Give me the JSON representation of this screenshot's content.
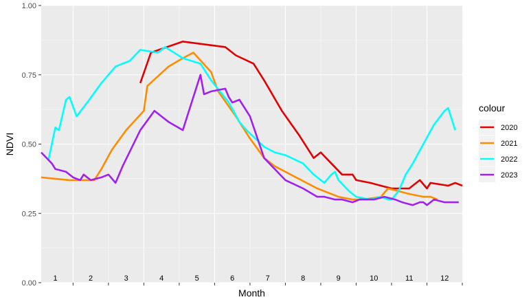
{
  "chart_data": {
    "type": "line",
    "xlabel": "Month",
    "ylabel": "NDVI",
    "xlim": [
      0.6,
      12.5
    ],
    "ylim": [
      0,
      1
    ],
    "grid": true,
    "month_labels": [
      "1",
      "2",
      "3",
      "4",
      "5",
      "6",
      "7",
      "8",
      "9",
      "10",
      "11",
      "12"
    ],
    "y_ticks": [
      0,
      0.25,
      0.5,
      0.75,
      1
    ],
    "y_tick_labels": [
      "0.00",
      "0.25",
      "0.50",
      "0.75",
      "1.00"
    ],
    "legend": {
      "title": "colour",
      "placement": "right"
    },
    "series": [
      {
        "name": "2020",
        "color": "#e00000",
        "points": [
          [
            3.4,
            0.72
          ],
          [
            3.7,
            0.83
          ],
          [
            4.6,
            0.87
          ],
          [
            5.2,
            0.86
          ],
          [
            5.8,
            0.85
          ],
          [
            6.1,
            0.82
          ],
          [
            6.6,
            0.79
          ],
          [
            6.9,
            0.73
          ],
          [
            7.4,
            0.62
          ],
          [
            7.9,
            0.53
          ],
          [
            8.3,
            0.45
          ],
          [
            8.5,
            0.47
          ],
          [
            8.8,
            0.43
          ],
          [
            9.1,
            0.39
          ],
          [
            9.4,
            0.39
          ],
          [
            9.5,
            0.37
          ],
          [
            9.9,
            0.36
          ],
          [
            10.2,
            0.35
          ],
          [
            10.5,
            0.34
          ],
          [
            11.0,
            0.34
          ],
          [
            11.2,
            0.36
          ],
          [
            11.3,
            0.37
          ],
          [
            11.5,
            0.34
          ],
          [
            11.6,
            0.36
          ],
          [
            12.1,
            0.35
          ],
          [
            12.3,
            0.36
          ],
          [
            12.5,
            0.35
          ]
        ]
      },
      {
        "name": "2021",
        "color": "#ff8c00",
        "points": [
          [
            0.6,
            0.38
          ],
          [
            1.4,
            0.37
          ],
          [
            2.1,
            0.37
          ],
          [
            2.3,
            0.41
          ],
          [
            2.6,
            0.48
          ],
          [
            3.0,
            0.55
          ],
          [
            3.5,
            0.62
          ],
          [
            3.6,
            0.71
          ],
          [
            4.2,
            0.78
          ],
          [
            4.6,
            0.81
          ],
          [
            4.9,
            0.83
          ],
          [
            5.4,
            0.76
          ],
          [
            5.6,
            0.69
          ],
          [
            6.1,
            0.6
          ],
          [
            6.5,
            0.52
          ],
          [
            6.9,
            0.45
          ],
          [
            7.2,
            0.42
          ],
          [
            7.8,
            0.38
          ],
          [
            8.4,
            0.34
          ],
          [
            9.0,
            0.31
          ],
          [
            9.4,
            0.3
          ],
          [
            9.7,
            0.3
          ],
          [
            10.2,
            0.31
          ],
          [
            10.4,
            0.34
          ],
          [
            10.7,
            0.33
          ],
          [
            11.0,
            0.32
          ],
          [
            11.4,
            0.31
          ],
          [
            11.6,
            0.31
          ],
          [
            11.8,
            0.3
          ]
        ]
      },
      {
        "name": "2022",
        "color": "#00ffff",
        "points": [
          [
            0.8,
            0.44
          ],
          [
            1.0,
            0.56
          ],
          [
            1.1,
            0.55
          ],
          [
            1.3,
            0.66
          ],
          [
            1.4,
            0.67
          ],
          [
            1.6,
            0.6
          ],
          [
            1.9,
            0.65
          ],
          [
            2.3,
            0.72
          ],
          [
            2.7,
            0.78
          ],
          [
            2.9,
            0.79
          ],
          [
            3.1,
            0.8
          ],
          [
            3.4,
            0.84
          ],
          [
            3.9,
            0.83
          ],
          [
            4.1,
            0.85
          ],
          [
            4.6,
            0.81
          ],
          [
            5.1,
            0.79
          ],
          [
            5.4,
            0.73
          ],
          [
            5.9,
            0.65
          ],
          [
            6.2,
            0.58
          ],
          [
            6.4,
            0.55
          ],
          [
            6.9,
            0.49
          ],
          [
            7.2,
            0.47
          ],
          [
            7.5,
            0.46
          ],
          [
            8.0,
            0.43
          ],
          [
            8.3,
            0.39
          ],
          [
            8.6,
            0.36
          ],
          [
            8.8,
            0.39
          ],
          [
            8.9,
            0.4
          ],
          [
            9.0,
            0.37
          ],
          [
            9.3,
            0.33
          ],
          [
            9.5,
            0.31
          ],
          [
            9.9,
            0.3
          ],
          [
            10.2,
            0.31
          ],
          [
            10.4,
            0.3
          ],
          [
            10.5,
            0.3
          ],
          [
            10.7,
            0.33
          ],
          [
            10.9,
            0.39
          ],
          [
            11.1,
            0.43
          ],
          [
            11.4,
            0.5
          ],
          [
            11.7,
            0.57
          ],
          [
            12.0,
            0.62
          ],
          [
            12.1,
            0.63
          ],
          [
            12.2,
            0.59
          ],
          [
            12.3,
            0.55
          ]
        ]
      },
      {
        "name": "2023",
        "color": "#a020f0",
        "points": [
          [
            0.6,
            0.47
          ],
          [
            0.9,
            0.43
          ],
          [
            1.0,
            0.41
          ],
          [
            1.3,
            0.4
          ],
          [
            1.5,
            0.38
          ],
          [
            1.7,
            0.37
          ],
          [
            1.8,
            0.39
          ],
          [
            2.0,
            0.37
          ],
          [
            2.3,
            0.38
          ],
          [
            2.5,
            0.39
          ],
          [
            2.7,
            0.36
          ],
          [
            2.9,
            0.42
          ],
          [
            3.4,
            0.55
          ],
          [
            3.8,
            0.62
          ],
          [
            4.2,
            0.58
          ],
          [
            4.6,
            0.55
          ],
          [
            5.1,
            0.75
          ],
          [
            5.2,
            0.68
          ],
          [
            5.4,
            0.69
          ],
          [
            5.8,
            0.7
          ],
          [
            5.9,
            0.67
          ],
          [
            6.0,
            0.65
          ],
          [
            6.2,
            0.66
          ],
          [
            6.5,
            0.6
          ],
          [
            6.9,
            0.45
          ],
          [
            7.5,
            0.37
          ],
          [
            8.0,
            0.34
          ],
          [
            8.4,
            0.31
          ],
          [
            8.6,
            0.31
          ],
          [
            8.9,
            0.3
          ],
          [
            9.1,
            0.3
          ],
          [
            9.4,
            0.29
          ],
          [
            9.6,
            0.3
          ],
          [
            10.0,
            0.3
          ],
          [
            10.3,
            0.31
          ],
          [
            10.6,
            0.3
          ],
          [
            10.8,
            0.29
          ],
          [
            11.1,
            0.28
          ],
          [
            11.3,
            0.29
          ],
          [
            11.4,
            0.29
          ],
          [
            11.5,
            0.28
          ],
          [
            11.7,
            0.3
          ],
          [
            12.0,
            0.29
          ],
          [
            12.4,
            0.29
          ]
        ]
      }
    ]
  }
}
